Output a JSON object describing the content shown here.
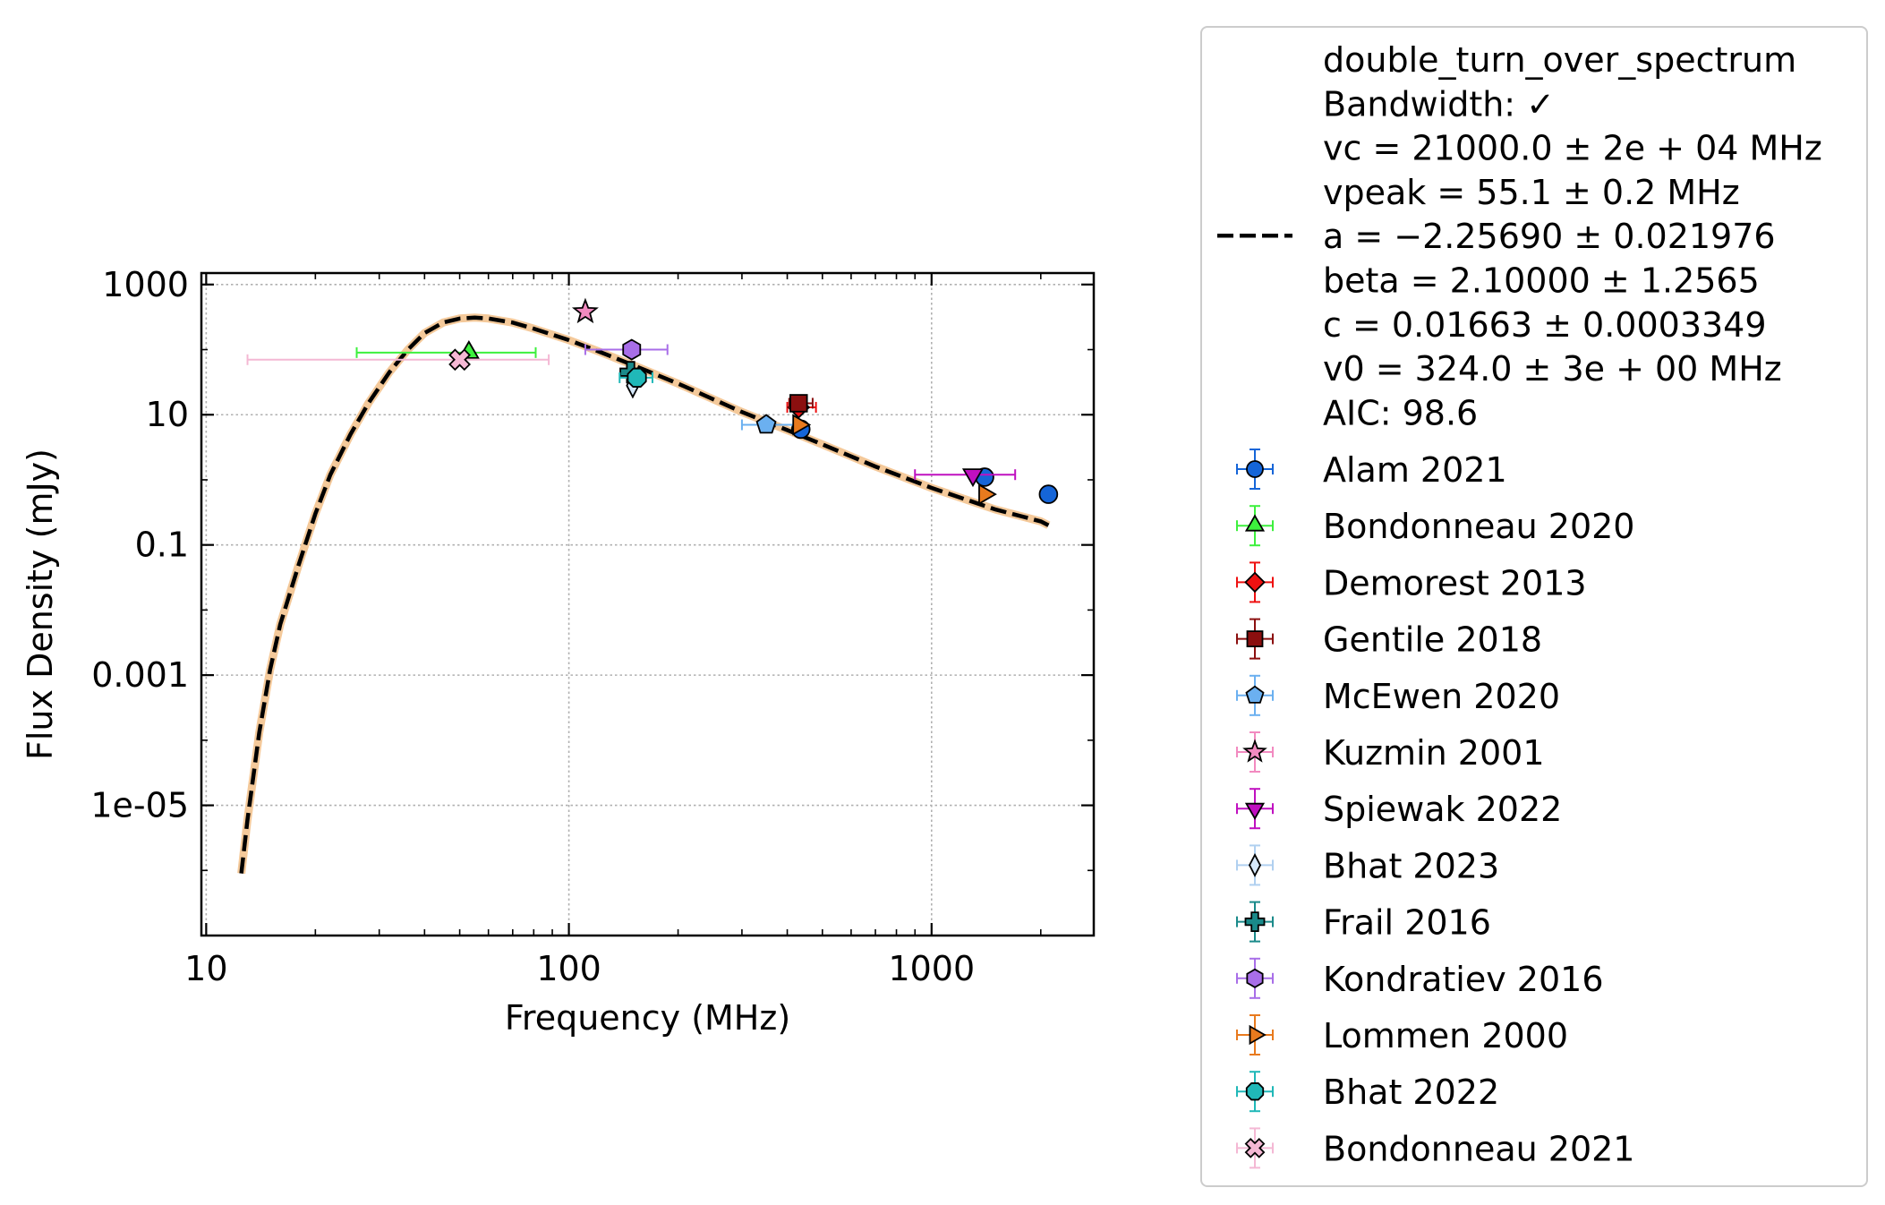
{
  "chart_data": {
    "type": "scatter",
    "xlabel": "Frequency (MHz)",
    "ylabel": "Flux Density (mJy)",
    "xscale": "log",
    "yscale": "log",
    "xlim": [
      9.7,
      2800
    ],
    "ylim": [
      1e-07,
      1500
    ],
    "xticks": [
      10,
      100,
      1000
    ],
    "xtick_labels": [
      "10",
      "100",
      "1000"
    ],
    "yticks": [
      1000,
      10,
      0.1,
      0.001,
      1e-05
    ],
    "ytick_labels": [
      "1000",
      "10",
      "0.1",
      "0.001",
      "1e-05"
    ],
    "grid": true,
    "legend_position": "outside-right",
    "fit": {
      "label_lines": [
        "double_turn_over_spectrum",
        "Bandwidth: ✓",
        "vc = 21000.0 ± 2e + 04 MHz",
        "vpeak = 55.1 ± 0.2 MHz",
        "a = −2.25690 ± 0.021976",
        "beta = 2.10000 ± 1.2565",
        "c = 0.01663 ± 0.0003349",
        "v0 = 324.0 ± 3e + 00 MHz",
        "AIC: 98.6"
      ],
      "color": "#000000",
      "band_color": "#f4c99a",
      "x": [
        12.5,
        13,
        14,
        15,
        16,
        18,
        20,
        22,
        25,
        28,
        32,
        36,
        40,
        45,
        50,
        55,
        60,
        70,
        80,
        100,
        120,
        150,
        200,
        300,
        400,
        500,
        700,
        1000,
        1500,
        2000,
        2100
      ],
      "y": [
        9e-07,
        6e-06,
        0.00013,
        0.0012,
        0.006,
        0.05,
        0.3,
        1.2,
        5,
        15,
        45,
        100,
        180,
        260,
        300,
        310,
        300,
        260,
        210,
        140,
        95,
        58,
        30,
        11,
        5.8,
        3.5,
        1.6,
        0.75,
        0.35,
        0.23,
        0.2
      ]
    },
    "series": [
      {
        "name": "Alam 2021",
        "marker": "circle",
        "color": "#1565d8",
        "ecolor": "#1565d8",
        "points": [
          {
            "x": 436,
            "y": 6
          },
          {
            "x": 1400,
            "y": 1.1
          },
          {
            "x": 2100,
            "y": 0.6
          }
        ]
      },
      {
        "name": "Bondonneau 2020",
        "marker": "triangle-up",
        "color": "#3df03d",
        "ecolor": "#3df03d",
        "points": [
          {
            "x": 53,
            "y": 90,
            "xerr": [
              27,
              28
            ]
          }
        ]
      },
      {
        "name": "Demorest 2013",
        "marker": "diamond",
        "color": "#ee1111",
        "ecolor": "#ee1111",
        "points": [
          {
            "x": 430,
            "y": 13,
            "xerr": [
              30,
              50
            ]
          }
        ]
      },
      {
        "name": "Gentile 2018",
        "marker": "square",
        "color": "#8b0f0f",
        "ecolor": "#8b0f0f",
        "points": [
          {
            "x": 430,
            "y": 15,
            "xerr": [
              25,
              40
            ]
          }
        ]
      },
      {
        "name": "McEwen 2020",
        "marker": "pentagon",
        "color": "#6bb0f0",
        "ecolor": "#6bb0f0",
        "points": [
          {
            "x": 350,
            "y": 7,
            "xerr": [
              50,
              80
            ]
          }
        ]
      },
      {
        "name": "Kuzmin 2001",
        "marker": "star",
        "color": "#f28ac0",
        "ecolor": "#f28ac0",
        "points": [
          {
            "x": 111,
            "y": 380
          }
        ]
      },
      {
        "name": "Spiewak 2022",
        "marker": "triangle-down",
        "color": "#c010c0",
        "ecolor": "#c010c0",
        "points": [
          {
            "x": 1300,
            "y": 1.2,
            "xerr": [
              400,
              400
            ]
          }
        ]
      },
      {
        "name": "Bhat 2023",
        "marker": "thin-diamond",
        "color": "#d6e8fa",
        "ecolor": "#b0d0f0",
        "points": [
          {
            "x": 150,
            "y": 28
          }
        ]
      },
      {
        "name": "Frail 2016",
        "marker": "plus",
        "color": "#1a8a8a",
        "ecolor": "#1a8a8a",
        "points": [
          {
            "x": 148,
            "y": 45
          }
        ]
      },
      {
        "name": "Kondratiev 2016",
        "marker": "hexagon",
        "color": "#a86ee8",
        "ecolor": "#a86ee8",
        "points": [
          {
            "x": 149,
            "y": 100,
            "xerr": [
              38,
              38
            ]
          }
        ]
      },
      {
        "name": "Lommen 2000",
        "marker": "triangle-right",
        "color": "#e87a1e",
        "ecolor": "#e87a1e",
        "points": [
          {
            "x": 430,
            "y": 7
          },
          {
            "x": 1400,
            "y": 0.6
          }
        ]
      },
      {
        "name": "Bhat 2022",
        "marker": "octagon",
        "color": "#20b8b8",
        "ecolor": "#20b8b8",
        "points": [
          {
            "x": 154,
            "y": 37,
            "xerr": [
              16,
              16
            ]
          }
        ]
      },
      {
        "name": "Bondonneau 2021",
        "marker": "x-filled",
        "color": "#f4b8d4",
        "ecolor": "#f4b8d4",
        "points": [
          {
            "x": 50,
            "y": 70,
            "xerr": [
              37,
              38
            ]
          }
        ]
      }
    ]
  }
}
